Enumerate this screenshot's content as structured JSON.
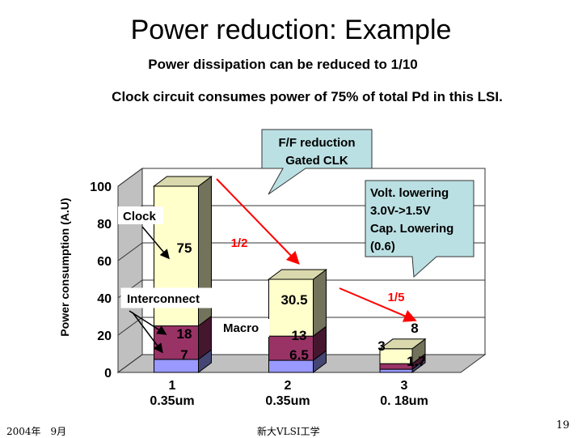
{
  "slide": {
    "title": "Power reduction: Example",
    "subtitle1": "Power dissipation can be reduced to 1/10",
    "subtitle2": "Clock circuit consumes power of 75% of total Pd in this LSI.",
    "footer_left": "2004年　9月",
    "footer_center": "新大VLSI工学",
    "page_number": "19"
  },
  "chart_data": {
    "type": "bar",
    "stacked": true,
    "ylabel": "Power consumption (A.U)",
    "ylim": [
      0,
      100
    ],
    "yticks": [
      "0",
      "20",
      "40",
      "60",
      "80",
      "100"
    ],
    "categories": [
      {
        "num": "1",
        "tech": "0.35um"
      },
      {
        "num": "2",
        "tech": "0.35um"
      },
      {
        "num": "3",
        "tech": "0. 18um"
      }
    ],
    "series": [
      {
        "name": "Macro",
        "color": "#9999ff",
        "values": [
          7,
          6.5,
          1.7
        ],
        "labels": [
          "7",
          "6.5",
          "1.7"
        ]
      },
      {
        "name": "Interconnect",
        "color": "#993366",
        "values": [
          18,
          13,
          3
        ],
        "labels": [
          "18",
          "13",
          "3"
        ]
      },
      {
        "name": "Clock",
        "color": "#ffffcc",
        "values": [
          75,
          30.5,
          8
        ],
        "labels": [
          "75",
          "30.5",
          "8"
        ]
      }
    ],
    "annotations": {
      "ff_callout": [
        "F/F reduction",
        "Gated CLK"
      ],
      "volt_callout": [
        "Volt. lowering",
        "3.0V->1.5V",
        "Cap. Lowering",
        " (0.6)"
      ],
      "ratio_half": "1/2",
      "ratio_fifth": "1/5",
      "label_clock": "Clock",
      "label_interconnect": "Interconnect",
      "label_macro": "Macro"
    },
    "grid": true,
    "arrow_color": "#ff0000",
    "wall_color": "#c0c0c0",
    "callout_color": "#bbe0e3"
  }
}
